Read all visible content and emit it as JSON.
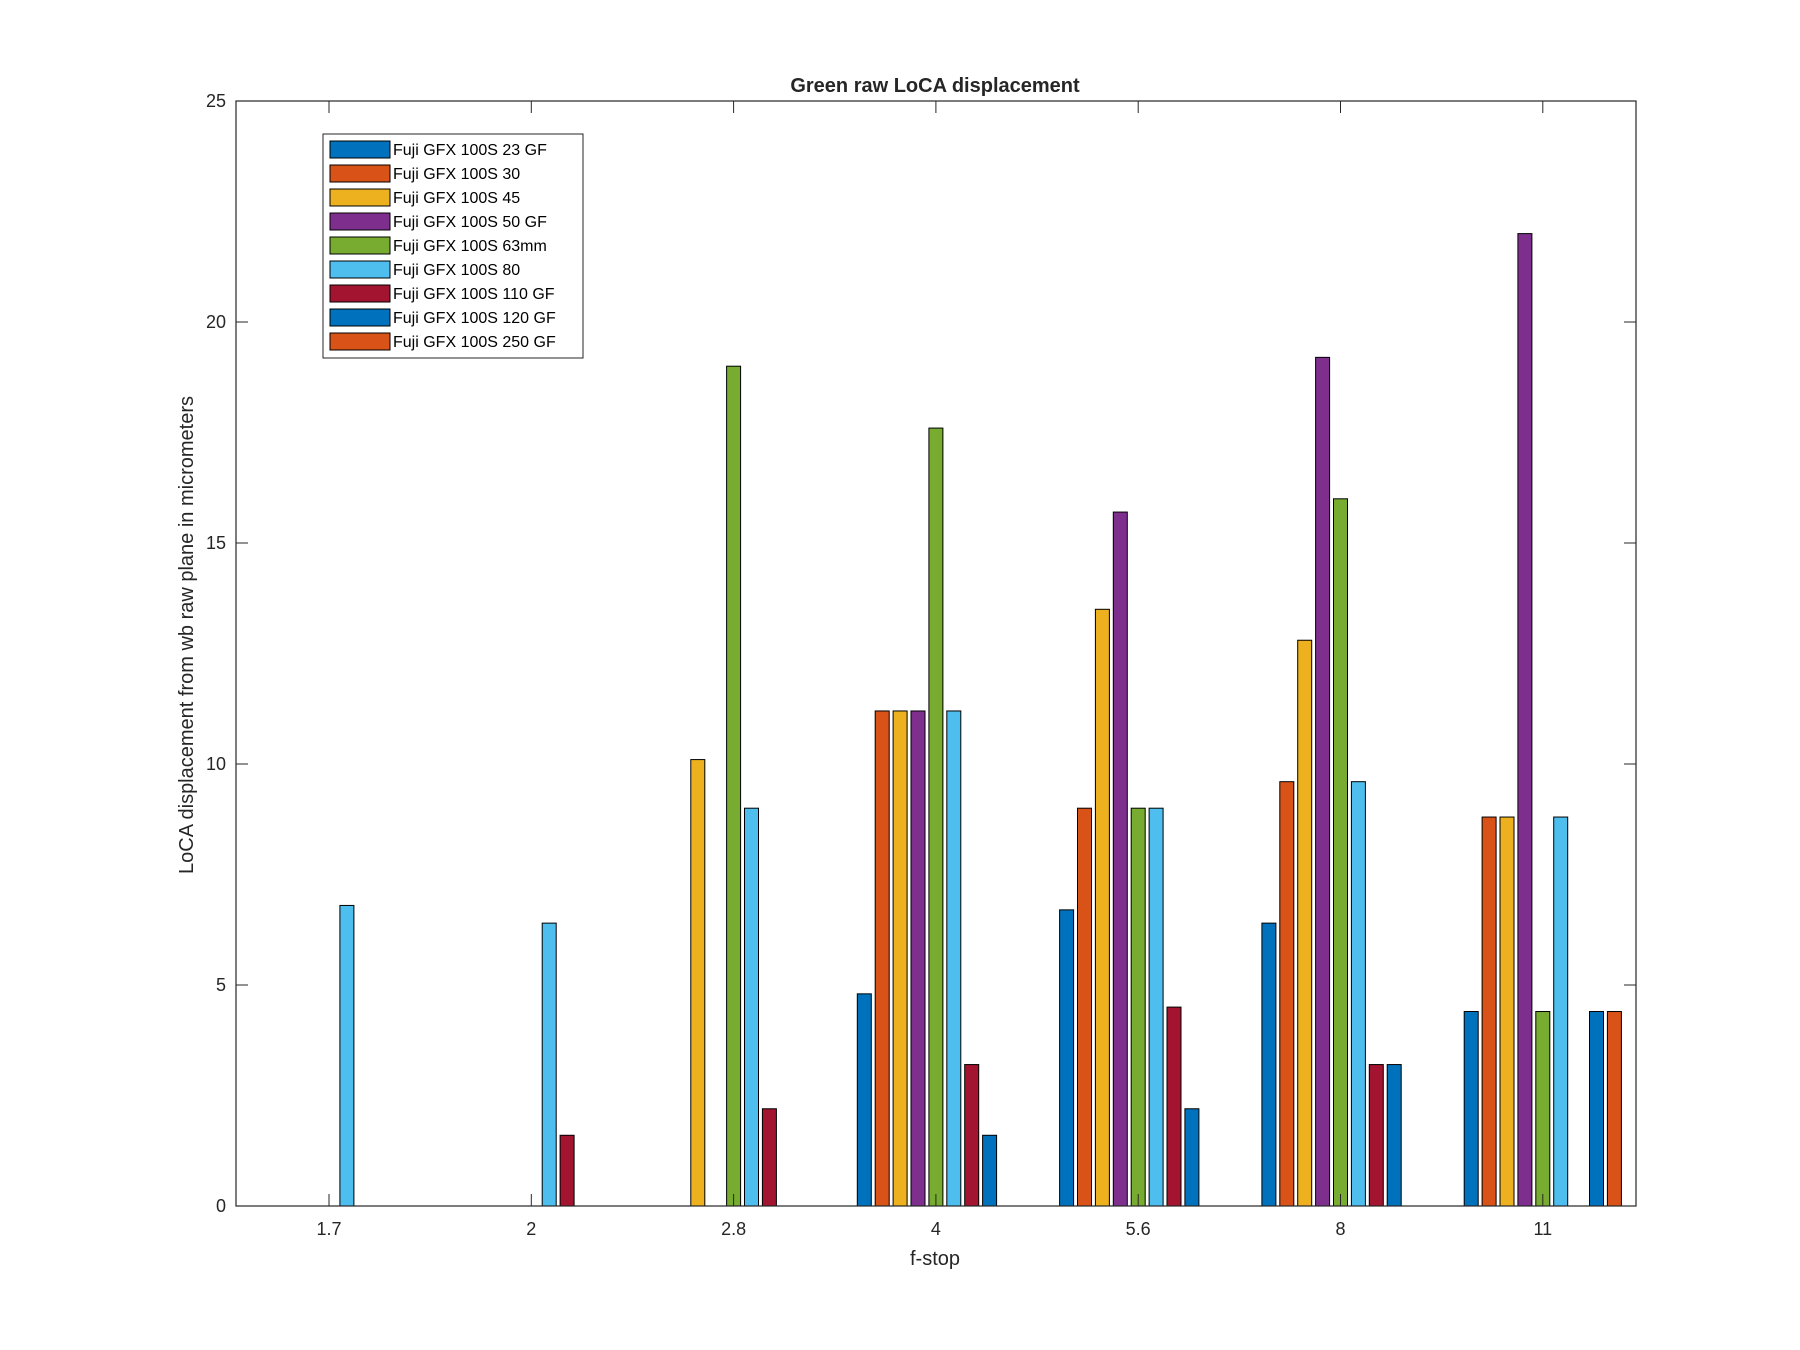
{
  "chart_data": {
    "type": "bar",
    "title": "Green raw  LoCA displacement",
    "xlabel": "f-stop",
    "ylabel": "LoCA displacement from wb raw plane in micrometers",
    "categories": [
      "1.7",
      "2",
      "2.8",
      "4",
      "5.6",
      "8",
      "11"
    ],
    "ylim": [
      0,
      25
    ],
    "yticks": [
      0,
      5,
      10,
      15,
      20,
      25
    ],
    "legend_position": "top-left",
    "series": [
      {
        "name": "Fuji GFX 100S 23  GF",
        "color": "#0072BD",
        "values": [
          0,
          0,
          0,
          4.8,
          6.7,
          6.4,
          4.4
        ]
      },
      {
        "name": "Fuji GFX 100S 30",
        "color": "#D95319",
        "values": [
          0,
          0,
          0,
          11.2,
          9.0,
          9.6,
          8.8
        ]
      },
      {
        "name": "Fuji GFX 100S 45",
        "color": "#EDB120",
        "values": [
          0,
          0,
          10.1,
          11.2,
          13.5,
          12.8,
          8.8
        ]
      },
      {
        "name": "Fuji GFX 100S 50 GF",
        "color": "#7E2F8E",
        "values": [
          0,
          0,
          0,
          11.2,
          15.7,
          19.2,
          22.0
        ]
      },
      {
        "name": "Fuji GFX 100S 63mm",
        "color": "#77AC30",
        "values": [
          0,
          0,
          19.0,
          17.6,
          9.0,
          16.0,
          4.4
        ]
      },
      {
        "name": "Fuji GFX 100S 80",
        "color": "#4DBEEE",
        "values": [
          6.8,
          6.4,
          9.0,
          11.2,
          9.0,
          9.6,
          8.8
        ]
      },
      {
        "name": "Fuji GFX 100S 110 GF",
        "color": "#A2142F",
        "values": [
          0,
          1.6,
          2.2,
          3.2,
          4.5,
          3.2,
          0
        ]
      },
      {
        "name": "Fuji GFX 100S 120 GF",
        "color": "#0072BD",
        "values": [
          0,
          0,
          0,
          1.6,
          2.2,
          3.2,
          4.4
        ]
      },
      {
        "name": "Fuji GFX 100S 250 GF",
        "color": "#D95319",
        "values": [
          0,
          0,
          0,
          0,
          0,
          0,
          4.4
        ]
      }
    ]
  }
}
